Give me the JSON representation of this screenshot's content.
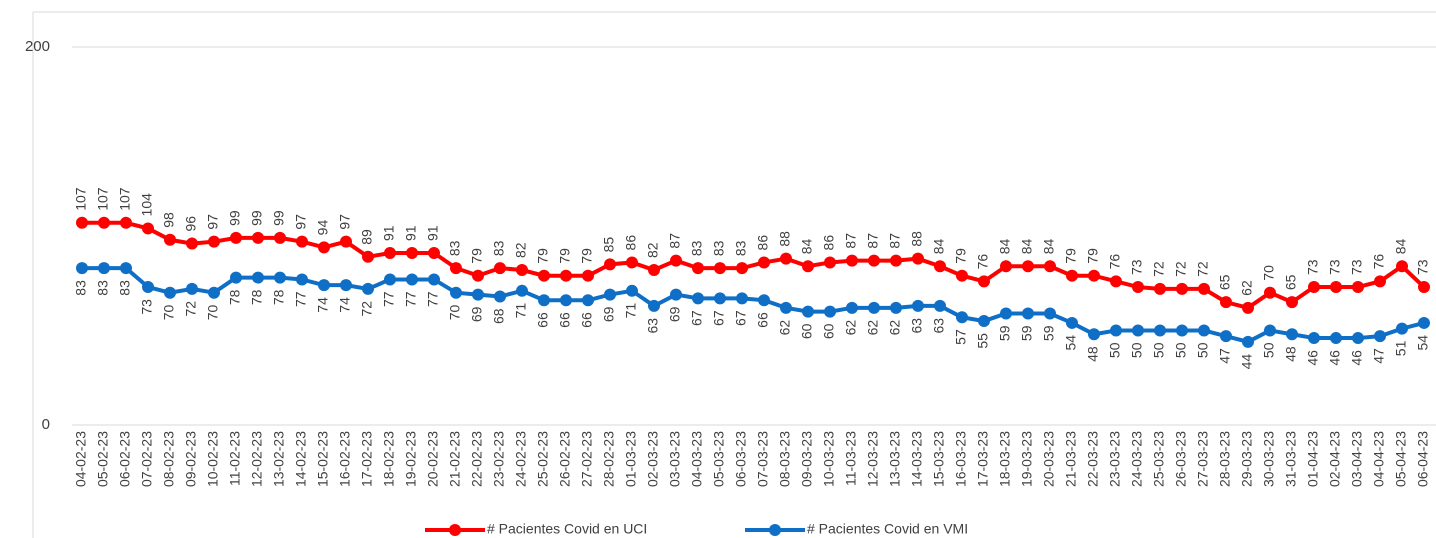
{
  "chart_data": {
    "type": "line",
    "categories": [
      "04-02-23",
      "05-02-23",
      "06-02-23",
      "07-02-23",
      "08-02-23",
      "09-02-23",
      "10-02-23",
      "11-02-23",
      "12-02-23",
      "13-02-23",
      "14-02-23",
      "15-02-23",
      "16-02-23",
      "17-02-23",
      "18-02-23",
      "19-02-23",
      "20-02-23",
      "21-02-23",
      "22-02-23",
      "23-02-23",
      "24-02-23",
      "25-02-23",
      "26-02-23",
      "27-02-23",
      "28-02-23",
      "01-03-23",
      "02-03-23",
      "03-03-23",
      "04-03-23",
      "05-03-23",
      "06-03-23",
      "07-03-23",
      "08-03-23",
      "09-03-23",
      "10-03-23",
      "11-03-23",
      "12-03-23",
      "13-03-23",
      "14-03-23",
      "15-03-23",
      "16-03-23",
      "17-03-23",
      "18-03-23",
      "19-03-23",
      "20-03-23",
      "21-03-23",
      "22-03-23",
      "23-03-23",
      "24-03-23",
      "25-03-23",
      "26-03-23",
      "27-03-23",
      "28-03-23",
      "29-03-23",
      "30-03-23",
      "31-03-23",
      "01-04-23",
      "02-04-23",
      "03-04-23",
      "04-04-23",
      "05-04-23",
      "06-04-23"
    ],
    "series": [
      {
        "name": "# Pacientes Covid en UCI",
        "color": "#ff0000",
        "label_position": "above",
        "values": [
          107,
          107,
          107,
          104,
          98,
          96,
          97,
          99,
          99,
          99,
          97,
          94,
          97,
          89,
          91,
          91,
          91,
          83,
          79,
          83,
          82,
          79,
          79,
          79,
          85,
          86,
          82,
          87,
          83,
          83,
          83,
          86,
          88,
          84,
          86,
          87,
          87,
          87,
          88,
          84,
          79,
          76,
          84,
          84,
          84,
          79,
          79,
          76,
          73,
          72,
          72,
          72,
          65,
          62,
          70,
          65,
          73,
          73,
          73,
          76,
          84,
          73
        ]
      },
      {
        "name": "# Pacientes Covid en VMI",
        "color": "#0f6fc6",
        "label_position": "below",
        "values": [
          83,
          83,
          83,
          73,
          70,
          72,
          70,
          78,
          78,
          78,
          77,
          74,
          74,
          72,
          77,
          77,
          77,
          70,
          69,
          68,
          71,
          66,
          66,
          66,
          69,
          71,
          63,
          69,
          67,
          67,
          67,
          66,
          62,
          60,
          60,
          62,
          62,
          62,
          63,
          63,
          57,
          55,
          59,
          59,
          59,
          54,
          48,
          50,
          50,
          50,
          50,
          50,
          47,
          44,
          50,
          48,
          46,
          46,
          46,
          47,
          51,
          54
        ]
      }
    ],
    "ylim": [
      0,
      200
    ],
    "yticks": [
      0,
      200
    ],
    "grid": true,
    "legend": "bottom"
  }
}
